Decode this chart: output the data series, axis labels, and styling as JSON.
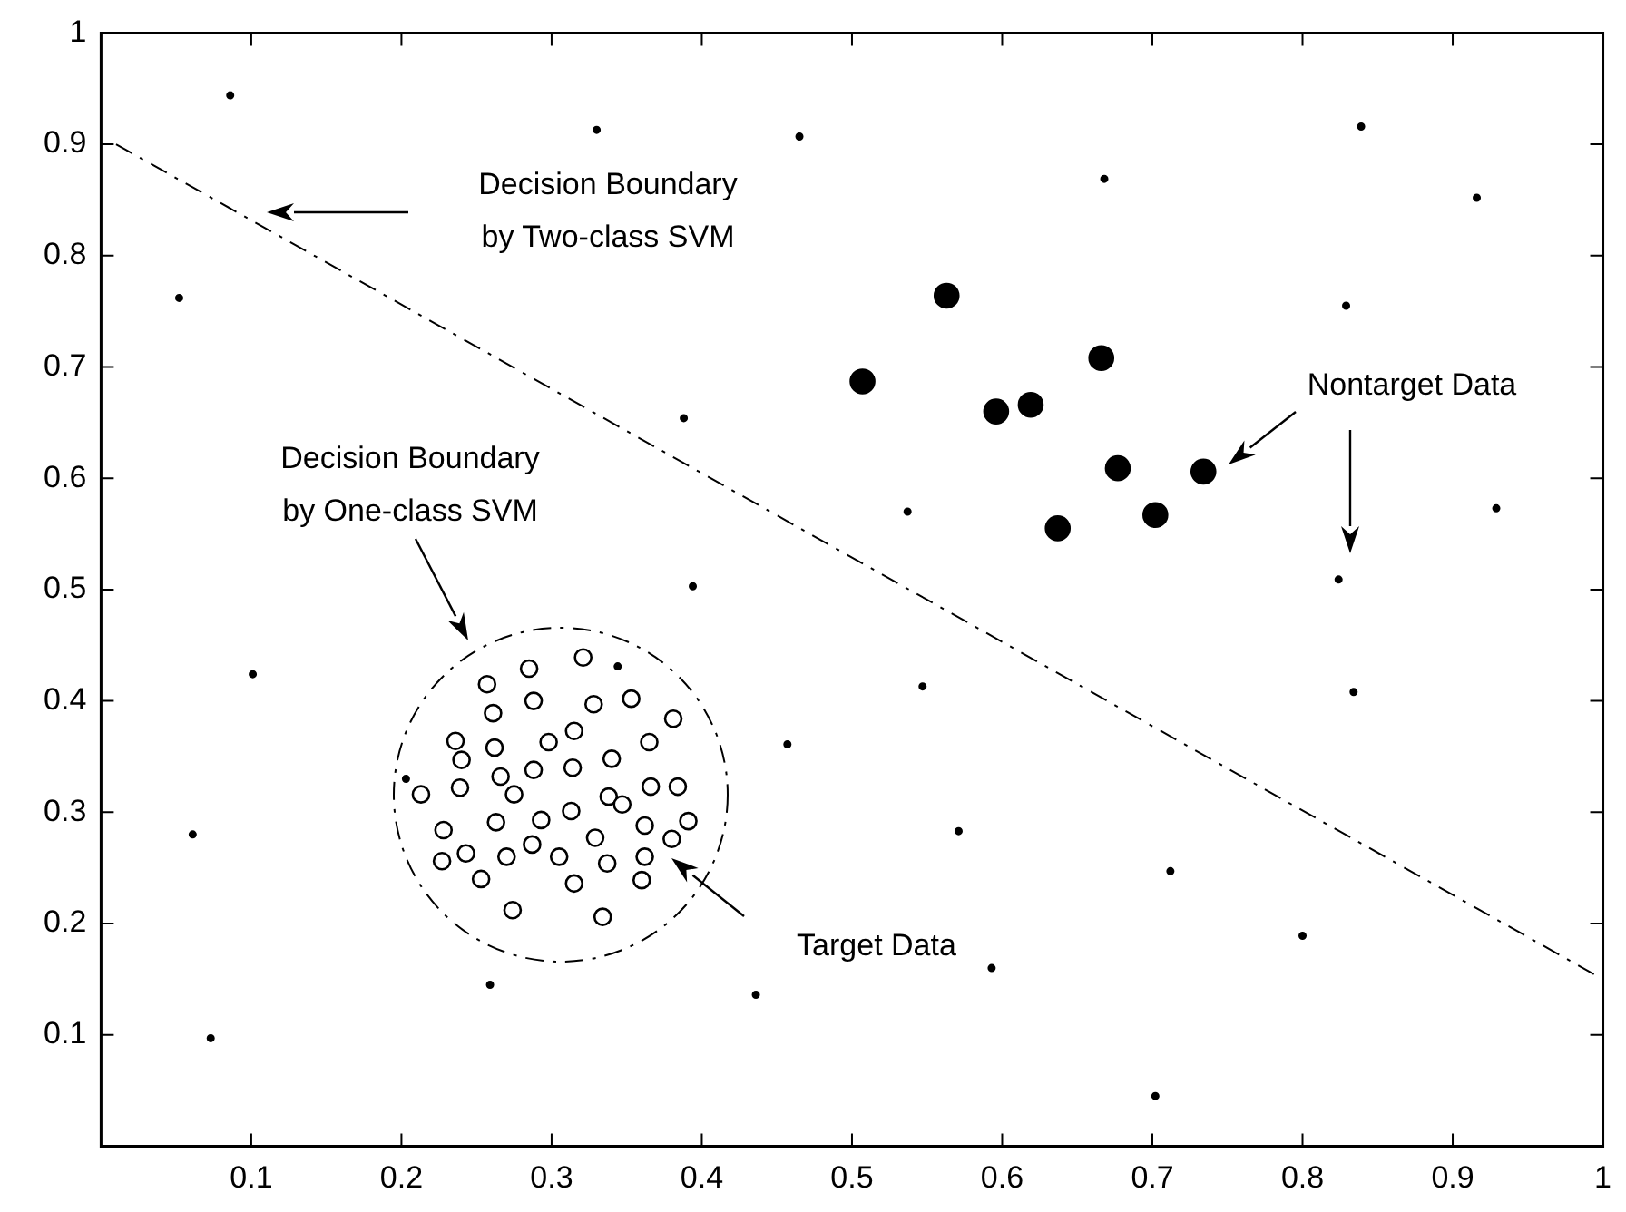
{
  "chart_data": {
    "type": "scatter",
    "xlim": [
      0,
      1
    ],
    "ylim": [
      0,
      1
    ],
    "xticks": [
      0.1,
      0.2,
      0.3,
      0.4,
      0.5,
      0.6,
      0.7,
      0.8,
      0.9,
      1
    ],
    "yticks": [
      0.1,
      0.2,
      0.3,
      0.4,
      0.5,
      0.6,
      0.7,
      0.8,
      0.9,
      1
    ],
    "grid": false,
    "legend": false,
    "series": [
      {
        "marker": "circle",
        "color": "#000000",
        "x": [
          0.321,
          0.285,
          0.257,
          0.353,
          0.288,
          0.328,
          0.261,
          0.381,
          0.315,
          0.236,
          0.298,
          0.365,
          0.262,
          0.24,
          0.34,
          0.314,
          0.288,
          0.266,
          0.239,
          0.366,
          0.384,
          0.213,
          0.275,
          0.338,
          0.347,
          0.313,
          0.263,
          0.293,
          0.362,
          0.391,
          0.228,
          0.329,
          0.287,
          0.38,
          0.243,
          0.27,
          0.305,
          0.362,
          0.227,
          0.337,
          0.253,
          0.36,
          0.315,
          0.274,
          0.334
        ],
        "values": [
          0.439,
          0.429,
          0.415,
          0.402,
          0.4,
          0.397,
          0.389,
          0.384,
          0.373,
          0.364,
          0.363,
          0.363,
          0.358,
          0.347,
          0.348,
          0.34,
          0.338,
          0.332,
          0.322,
          0.323,
          0.323,
          0.316,
          0.316,
          0.314,
          0.307,
          0.301,
          0.291,
          0.293,
          0.288,
          0.292,
          0.284,
          0.277,
          0.271,
          0.276,
          0.263,
          0.26,
          0.26,
          0.26,
          0.256,
          0.254,
          0.24,
          0.239,
          0.236,
          0.212,
          0.206
        ]
      },
      {
        "marker": "circle",
        "color": "#000000",
        "x": [
          0.563,
          0.507,
          0.666,
          0.596,
          0.619,
          0.677,
          0.734,
          0.702,
          0.637
        ],
        "values": [
          0.764,
          0.687,
          0.708,
          0.66,
          0.666,
          0.609,
          0.606,
          0.567,
          0.555
        ]
      },
      {
        "marker": "circle",
        "color": "#000000",
        "x": [
          0.086,
          0.052,
          0.33,
          0.465,
          0.388,
          0.394,
          0.668,
          0.839,
          0.916,
          0.829,
          0.537,
          0.929,
          0.824,
          0.101,
          0.061,
          0.073,
          0.344,
          0.203,
          0.457,
          0.259,
          0.436,
          0.547,
          0.834,
          0.571,
          0.712,
          0.8,
          0.593,
          0.702
        ],
        "values": [
          0.944,
          0.762,
          0.913,
          0.907,
          0.654,
          0.503,
          0.869,
          0.916,
          0.852,
          0.755,
          0.57,
          0.573,
          0.509,
          0.424,
          0.28,
          0.097,
          0.431,
          0.33,
          0.361,
          0.145,
          0.136,
          0.413,
          0.408,
          0.283,
          0.247,
          0.189,
          0.16,
          0.045
        ]
      },
      {
        "type": "line",
        "marker": "none",
        "line_style": "dashed",
        "color": "#000000",
        "x": [
          0.01,
          1
        ],
        "values": [
          0.9,
          0.15
        ]
      }
    ],
    "annotations": [
      "Decision Boundary\nby Two-class SVM",
      "Decision Boundary\nby One-class SVM",
      "Nontarget Data",
      "Target Data"
    ]
  }
}
